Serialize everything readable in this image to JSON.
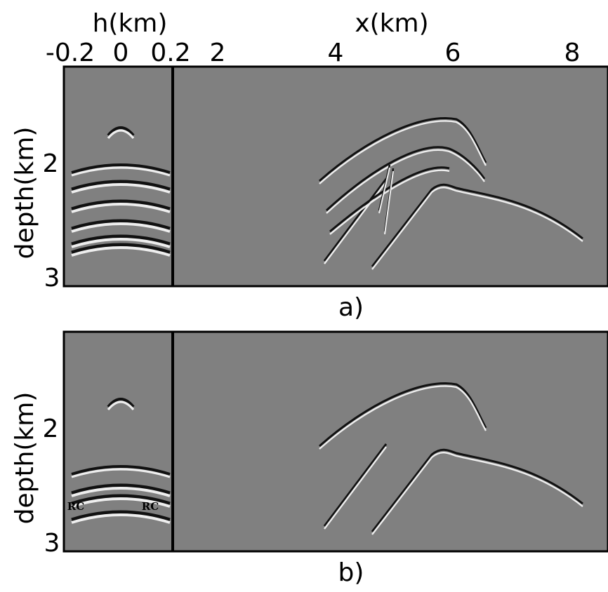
{
  "header": {
    "h_label": "h(km)",
    "x_label": "x(km)",
    "h_ticks": [
      "-0.2",
      "0",
      "0.2"
    ],
    "x_ticks": [
      "2",
      "4",
      "6",
      "8"
    ]
  },
  "panels": [
    {
      "y_label": "depth(km)",
      "y_ticks": [
        "2",
        "3"
      ],
      "caption": "a)"
    },
    {
      "y_label": "depth(km)",
      "y_ticks": [
        "2",
        "3"
      ],
      "caption": "b)",
      "annotations": [
        "RC",
        "RC"
      ]
    }
  ]
}
